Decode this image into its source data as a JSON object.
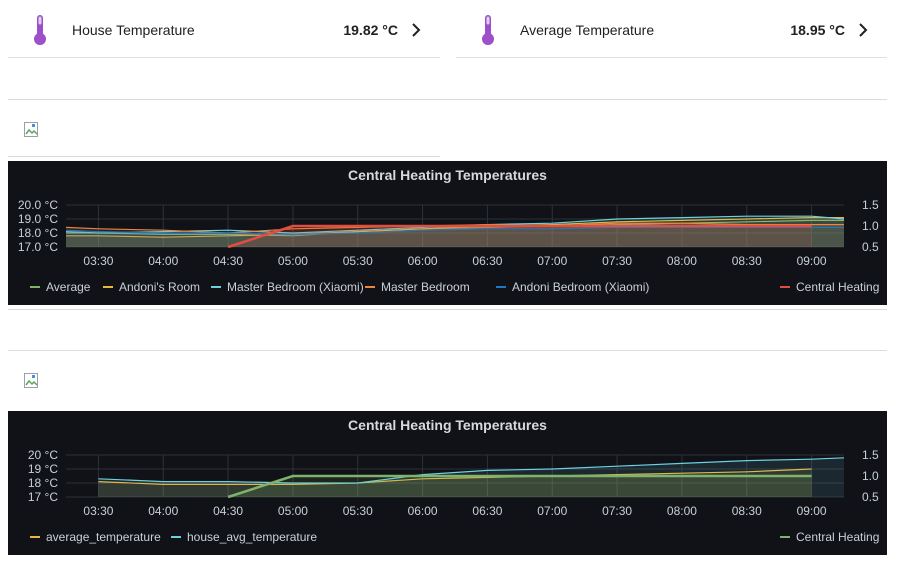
{
  "entities": [
    {
      "name": "House Temperature",
      "value": "19.82 °C",
      "icon": "thermometer-icon",
      "icon_color": "#9c4fc9"
    },
    {
      "name": "Average Temperature",
      "value": "18.95 °C",
      "icon": "thermometer-icon",
      "icon_color": "#9c4fc9"
    }
  ],
  "chart_data": [
    {
      "type": "line",
      "title": "Central Heating Temperatures",
      "x_ticks": [
        "03:30",
        "04:00",
        "04:30",
        "05:00",
        "05:30",
        "06:00",
        "06:30",
        "07:00",
        "07:30",
        "08:00",
        "08:30",
        "09:00"
      ],
      "y_left_ticks": [
        "20.0 °C",
        "19.0 °C",
        "18.0 °C",
        "17.0 °C"
      ],
      "y_right_ticks": [
        "1.5",
        "1.0",
        "0.5"
      ],
      "ylim_left": [
        17.0,
        20.0
      ],
      "ylim_right": [
        0.5,
        1.5
      ],
      "series": [
        {
          "name": "Average",
          "color": "#7eb26d",
          "axis": "left",
          "x": [
            "03:15",
            "03:30",
            "04:00",
            "04:30",
            "05:00",
            "05:30",
            "06:00",
            "06:30",
            "07:00",
            "07:30",
            "08:00",
            "08:30",
            "09:00",
            "09:15"
          ],
          "values": [
            18.0,
            18.0,
            17.9,
            17.9,
            17.8,
            18.1,
            18.3,
            18.4,
            18.5,
            18.6,
            18.7,
            18.8,
            18.9,
            18.9
          ]
        },
        {
          "name": "Andoni's Room",
          "color": "#eab839",
          "axis": "left",
          "x": [
            "03:15",
            "03:30",
            "04:00",
            "04:30",
            "05:00",
            "05:30",
            "06:00",
            "06:30",
            "07:00",
            "07:30",
            "08:00",
            "08:30",
            "09:00",
            "09:15"
          ],
          "values": [
            17.8,
            17.8,
            17.7,
            17.8,
            17.9,
            18.1,
            18.3,
            18.5,
            18.6,
            18.8,
            18.9,
            19.0,
            19.1,
            19.1
          ]
        },
        {
          "name": "Master Bedroom (Xiaomi)",
          "color": "#6ed0e0",
          "axis": "left",
          "x": [
            "03:15",
            "03:30",
            "04:00",
            "04:30",
            "05:00",
            "05:30",
            "06:00",
            "06:30",
            "07:00",
            "07:30",
            "08:00",
            "08:30",
            "09:00",
            "09:15"
          ],
          "values": [
            18.1,
            18.0,
            18.1,
            18.2,
            18.0,
            18.2,
            18.4,
            18.6,
            18.7,
            19.0,
            19.1,
            19.2,
            19.2,
            19.0
          ]
        },
        {
          "name": "Master Bedroom",
          "color": "#ef843c",
          "axis": "left",
          "x": [
            "03:15",
            "03:30",
            "04:00",
            "04:30",
            "05:00",
            "05:30",
            "06:00",
            "06:30",
            "07:00",
            "07:30",
            "08:00",
            "08:30",
            "09:00",
            "09:15"
          ],
          "values": [
            18.4,
            18.3,
            18.2,
            18.0,
            18.3,
            18.4,
            18.5,
            18.6,
            18.5,
            18.7,
            18.7,
            18.6,
            18.6,
            18.6
          ]
        },
        {
          "name": "Andoni Bedroom (Xiaomi)",
          "color": "#1f78c1",
          "axis": "left",
          "x": [
            "03:15",
            "03:30",
            "04:00",
            "04:30",
            "05:00",
            "05:30",
            "06:00",
            "06:30",
            "07:00",
            "07:30",
            "08:00",
            "08:30",
            "09:00",
            "09:15"
          ],
          "values": [
            18.2,
            18.1,
            18.0,
            18.0,
            17.9,
            18.0,
            18.2,
            18.3,
            18.3,
            18.4,
            18.4,
            18.4,
            18.4,
            18.4
          ]
        },
        {
          "name": "Central Heating",
          "color": "#e24d42",
          "axis": "right",
          "x": [
            "04:30",
            "05:00",
            "09:00"
          ],
          "values": [
            0.5,
            1.0,
            1.0
          ]
        }
      ],
      "legend": [
        "Average",
        "Andoni's Room",
        "Master Bedroom (Xiaomi)",
        "Master Bedroom",
        "Andoni Bedroom (Xiaomi)"
      ],
      "legend_right": [
        "Central Heating"
      ]
    },
    {
      "type": "line",
      "title": "Central Heating Temperatures",
      "x_ticks": [
        "03:30",
        "04:00",
        "04:30",
        "05:00",
        "05:30",
        "06:00",
        "06:30",
        "07:00",
        "07:30",
        "08:00",
        "08:30",
        "09:00"
      ],
      "y_left_ticks": [
        "20 °C",
        "19 °C",
        "18 °C",
        "17 °C"
      ],
      "y_right_ticks": [
        "1.5",
        "1.0",
        "0.5"
      ],
      "ylim_left": [
        17,
        20
      ],
      "ylim_right": [
        0.5,
        1.5
      ],
      "series": [
        {
          "name": "average_temperature",
          "color": "#eab839",
          "axis": "left",
          "x": [
            "03:30",
            "04:00",
            "04:30",
            "05:00",
            "05:30",
            "06:00",
            "06:30",
            "07:00",
            "07:30",
            "08:00",
            "08:30",
            "09:00"
          ],
          "values": [
            18.1,
            17.9,
            17.9,
            17.9,
            18.0,
            18.3,
            18.4,
            18.5,
            18.6,
            18.7,
            18.8,
            19.0
          ]
        },
        {
          "name": "house_avg_temperature",
          "color": "#6ed0e0",
          "axis": "left",
          "x": [
            "03:30",
            "04:00",
            "04:30",
            "05:00",
            "05:30",
            "06:00",
            "06:30",
            "07:00",
            "07:30",
            "08:00",
            "08:30",
            "09:00",
            "09:15"
          ],
          "values": [
            18.3,
            18.1,
            18.1,
            18.0,
            18.0,
            18.6,
            18.9,
            19.0,
            19.2,
            19.4,
            19.6,
            19.7,
            19.8
          ]
        },
        {
          "name": "Central Heating",
          "color": "#7eb26d",
          "axis": "right",
          "x": [
            "04:30",
            "05:00",
            "09:00"
          ],
          "values": [
            0.5,
            1.0,
            1.0
          ]
        }
      ],
      "legend": [
        "average_temperature",
        "house_avg_temperature"
      ],
      "legend_right": [
        "Central Heating"
      ]
    }
  ]
}
